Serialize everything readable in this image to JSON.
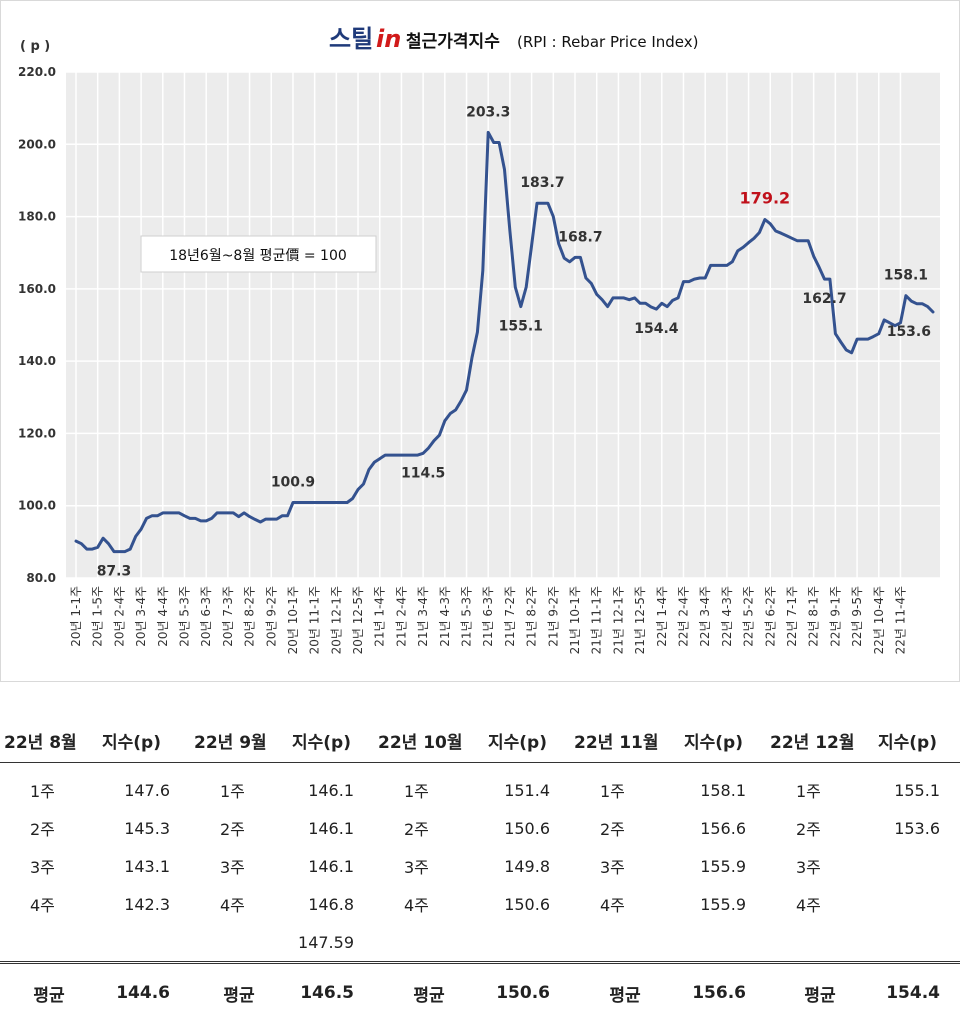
{
  "header": {
    "logo_main": "스틸",
    "logo_accent": "in",
    "title": "철근가격지수",
    "subtitle": "(RPI : Rebar Price Index)"
  },
  "chart_note": "18년6월~8월 평균價 = 100",
  "chart_data": {
    "type": "line",
    "title": "철근가격지수(RPI : Rebar Price Index)",
    "ylabel": "( p )",
    "ylim": [
      80,
      220
    ],
    "yticks": [
      "80.0",
      "100.0",
      "120.0",
      "140.0",
      "160.0",
      "180.0",
      "200.0",
      "220.0"
    ],
    "grid": true,
    "x_tick_labels": [
      "20년 1-1주",
      "20년 1-5주",
      "20년 2-4주",
      "20년 3-4주",
      "20년 4-4주",
      "20년 5-3주",
      "20년 6-3주",
      "20년 7-3주",
      "20년 8-2주",
      "20년 9-2주",
      "20년 10-1주",
      "20년 11-1주",
      "20년 12-1주",
      "20년 12-5주",
      "21년 1-4주",
      "21년 2-4주",
      "21년 3-4주",
      "21년 4-3주",
      "21년 5-3주",
      "21년 6-3주",
      "21년 7-2주",
      "21년 8-2주",
      "21년 9-2주",
      "21년 10-1주",
      "21년 11-1주",
      "21년 12-1주",
      "21년 12-5주",
      "22년 1-4주",
      "22년 2-4주",
      "22년 3-4주",
      "22년 4-3주",
      "22년 5-2주",
      "22년 6-2주",
      "22년 7-1주",
      "22년 8-1주",
      "22년 9-1주",
      "22년 9-5주",
      "22년 10-4주",
      "22년 11-4주"
    ],
    "tick_every": 4,
    "series": [
      {
        "values": [
          90.2,
          89.5,
          88.0,
          88.0,
          88.5,
          91.0,
          89.5,
          87.3,
          87.3,
          87.3,
          88.0,
          91.5,
          93.5,
          96.5,
          97.2,
          97.2,
          98.0,
          98.0,
          98.0,
          98.0,
          97.2,
          96.5,
          96.5,
          95.8,
          95.8,
          96.5,
          98.0,
          98.0,
          98.0,
          98.0,
          97.0,
          98.0,
          97.0,
          96.2,
          95.5,
          96.3,
          96.3,
          96.3,
          97.2,
          97.2,
          100.9,
          100.9,
          100.9,
          100.9,
          100.9,
          100.9,
          100.9,
          100.9,
          100.9,
          100.9,
          100.9,
          102.0,
          104.5,
          106.0,
          110.0,
          112.0,
          113.0,
          114.0,
          114.0,
          114.0,
          114.0,
          114.0,
          114.0,
          114.0,
          114.5,
          116.0,
          118.0,
          119.5,
          123.5,
          125.5,
          126.5,
          129.0,
          132.0,
          141.0,
          148.0,
          165.0,
          203.3,
          200.5,
          200.5,
          193.0,
          176.0,
          160.5,
          155.1,
          160.5,
          172.0,
          183.7,
          183.7,
          183.7,
          180.0,
          172.5,
          168.5,
          167.5,
          168.7,
          168.7,
          163.0,
          161.5,
          158.5,
          157.0,
          155.1,
          157.5,
          157.5,
          157.5,
          157.0,
          157.5,
          156.0,
          156.0,
          155.0,
          154.4,
          156.0,
          155.1,
          156.8,
          157.5,
          162.0,
          162.0,
          162.7,
          163.0,
          163.0,
          166.5,
          166.5,
          166.5,
          166.5,
          167.5,
          170.5,
          171.5,
          172.8,
          174.0,
          175.6,
          179.2,
          178.0,
          176.0,
          175.4,
          174.7,
          174.0,
          173.3,
          173.3,
          173.3,
          169.0,
          166.0,
          162.7,
          162.7,
          147.6,
          145.3,
          143.1,
          142.3,
          146.1,
          146.1,
          146.1,
          146.8,
          147.6,
          151.4,
          150.6,
          149.8,
          150.6,
          158.1,
          156.6,
          155.9,
          155.9,
          155.1,
          153.6
        ]
      }
    ],
    "annotations": [
      {
        "index": 7,
        "text": "87.3",
        "color": "normal"
      },
      {
        "index": 40,
        "text": "100.9",
        "color": "normal"
      },
      {
        "index": 64,
        "text": "114.5",
        "color": "normal"
      },
      {
        "index": 76,
        "text": "203.3",
        "color": "normal"
      },
      {
        "index": 82,
        "text": "155.1",
        "color": "normal"
      },
      {
        "index": 86,
        "text": "183.7",
        "color": "normal"
      },
      {
        "index": 93,
        "text": "168.7",
        "color": "normal"
      },
      {
        "index": 107,
        "text": "154.4",
        "color": "normal"
      },
      {
        "index": 127,
        "text": "179.2",
        "color": "red"
      },
      {
        "index": 138,
        "text": "162.7",
        "color": "normal"
      },
      {
        "index": 153,
        "text": "158.1",
        "color": "normal"
      },
      {
        "index": 158,
        "text": "153.6",
        "color": "normal"
      }
    ],
    "line_color": "#34528f",
    "highlight_color": "#c0101a"
  },
  "table": {
    "headers": [
      "22년 8월",
      "지수(p)",
      "22년 9월",
      "지수(p)",
      "22년 10월",
      "지수(p)",
      "22년 11월",
      "지수(p)",
      "22년 12월",
      "지수(p)"
    ],
    "rows": [
      [
        "1주",
        "147.6",
        "1주",
        "146.1",
        "1주",
        "151.4",
        "1주",
        "158.1",
        "1주",
        "155.1"
      ],
      [
        "2주",
        "145.3",
        "2주",
        "146.1",
        "2주",
        "150.6",
        "2주",
        "156.6",
        "2주",
        "153.6"
      ],
      [
        "3주",
        "143.1",
        "3주",
        "146.1",
        "3주",
        "149.8",
        "3주",
        "155.9",
        "3주",
        ""
      ],
      [
        "4주",
        "142.3",
        "4주",
        "146.8",
        "4주",
        "150.6",
        "4주",
        "155.9",
        "4주",
        ""
      ],
      [
        "",
        "",
        "",
        "147.59",
        "",
        "",
        "",
        "",
        "",
        ""
      ]
    ],
    "footer": [
      "평균",
      "144.6",
      "평균",
      "146.5",
      "평균",
      "150.6",
      "평균",
      "156.6",
      "평균",
      "154.4"
    ]
  }
}
